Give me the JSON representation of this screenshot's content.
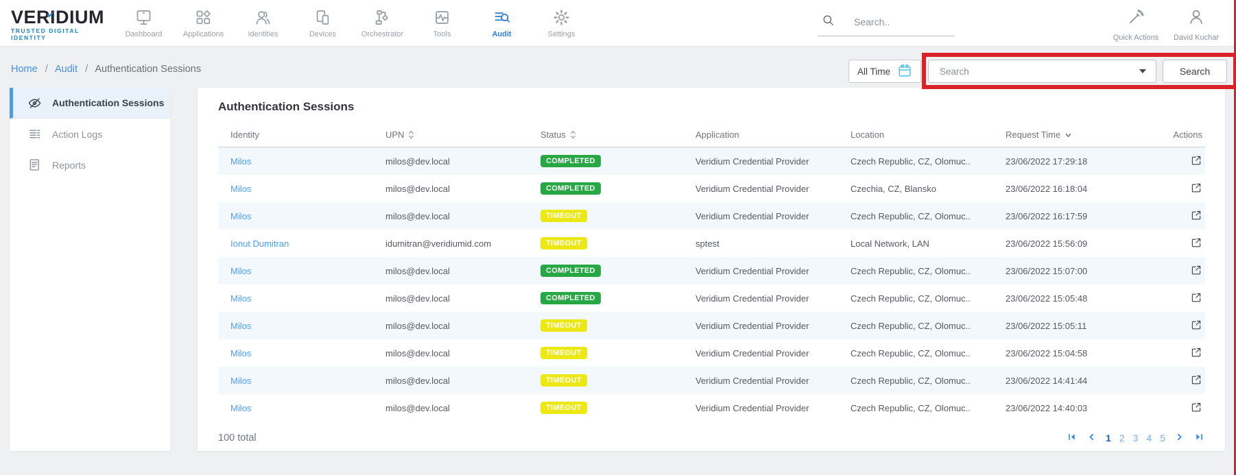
{
  "brand": {
    "name_prefix": "VER",
    "name_i": "I",
    "name_suffix": "DIUM",
    "tagline": "TRUSTED DIGITAL IDENTITY"
  },
  "navbar": {
    "items": [
      {
        "label": "Dashboard",
        "icon": "dashboard-icon",
        "active": false
      },
      {
        "label": "Applications",
        "icon": "applications-icon",
        "active": false
      },
      {
        "label": "Identities",
        "icon": "identities-icon",
        "active": false
      },
      {
        "label": "Devices",
        "icon": "devices-icon",
        "active": false
      },
      {
        "label": "Orchestrator",
        "icon": "orchestrator-icon",
        "active": false
      },
      {
        "label": "Tools",
        "icon": "tools-icon",
        "active": false
      },
      {
        "label": "Audit",
        "icon": "audit-icon",
        "active": true
      },
      {
        "label": "Settings",
        "icon": "settings-icon",
        "active": false
      }
    ],
    "global_search_placeholder": "Search..",
    "quick_actions_label": "Quick Actions",
    "user_name": "David Kuchar"
  },
  "breadcrumb": {
    "links": [
      "Home",
      "Audit"
    ],
    "current": "Authentication Sessions",
    "separator": "/"
  },
  "filter_bar": {
    "time_filter_label": "All Time",
    "search_placeholder": "Search",
    "search_button_label": "Search"
  },
  "sidebar": {
    "items": [
      {
        "label": "Authentication Sessions",
        "icon": "eye-slash-icon",
        "active": true
      },
      {
        "label": "Action Logs",
        "icon": "action-logs-icon",
        "active": false
      },
      {
        "label": "Reports",
        "icon": "reports-icon",
        "active": false
      }
    ]
  },
  "main": {
    "title": "Authentication Sessions",
    "table": {
      "columns": [
        {
          "label": "Identity",
          "sort": "none"
        },
        {
          "label": "UPN",
          "sort": "both"
        },
        {
          "label": "Status",
          "sort": "both"
        },
        {
          "label": "Application",
          "sort": "none"
        },
        {
          "label": "Location",
          "sort": "none"
        },
        {
          "label": "Request Time",
          "sort": "desc"
        },
        {
          "label": "Actions",
          "sort": "none"
        }
      ],
      "rows": [
        {
          "identity": "Milos",
          "upn": "milos@dev.local",
          "status": "COMPLETED",
          "application": "Veridium Credential Provider",
          "location": "Czech Republic, CZ, Olomuc..",
          "request_time": "23/06/2022 17:29:18"
        },
        {
          "identity": "Milos",
          "upn": "milos@dev.local",
          "status": "COMPLETED",
          "application": "Veridium Credential Provider",
          "location": "Czechia, CZ, Blansko",
          "request_time": "23/06/2022 16:18:04"
        },
        {
          "identity": "Milos",
          "upn": "milos@dev.local",
          "status": "TIMEOUT",
          "application": "Veridium Credential Provider",
          "location": "Czech Republic, CZ, Olomuc..",
          "request_time": "23/06/2022 16:17:59"
        },
        {
          "identity": "Ionut Dumitran",
          "upn": "idumitran@veridiumid.com",
          "status": "TIMEOUT",
          "application": "sptest",
          "location": "Local Network, LAN",
          "request_time": "23/06/2022 15:56:09"
        },
        {
          "identity": "Milos",
          "upn": "milos@dev.local",
          "status": "COMPLETED",
          "application": "Veridium Credential Provider",
          "location": "Czech Republic, CZ, Olomuc..",
          "request_time": "23/06/2022 15:07:00"
        },
        {
          "identity": "Milos",
          "upn": "milos@dev.local",
          "status": "COMPLETED",
          "application": "Veridium Credential Provider",
          "location": "Czech Republic, CZ, Olomuc..",
          "request_time": "23/06/2022 15:05:48"
        },
        {
          "identity": "Milos",
          "upn": "milos@dev.local",
          "status": "TIMEOUT",
          "application": "Veridium Credential Provider",
          "location": "Czech Republic, CZ, Olomuc..",
          "request_time": "23/06/2022 15:05:11"
        },
        {
          "identity": "Milos",
          "upn": "milos@dev.local",
          "status": "TIMEOUT",
          "application": "Veridium Credential Provider",
          "location": "Czech Republic, CZ, Olomuc..",
          "request_time": "23/06/2022 15:04:58"
        },
        {
          "identity": "Milos",
          "upn": "milos@dev.local",
          "status": "TIMEOUT",
          "application": "Veridium Credential Provider",
          "location": "Czech Republic, CZ, Olomuc..",
          "request_time": "23/06/2022 14:41:44"
        },
        {
          "identity": "Milos",
          "upn": "milos@dev.local",
          "status": "TIMEOUT",
          "application": "Veridium Credential Provider",
          "location": "Czech Republic, CZ, Olomuc..",
          "request_time": "23/06/2022 14:40:03"
        }
      ]
    },
    "total_label": "100 total",
    "pagination": {
      "pages": [
        "1",
        "2",
        "3",
        "4",
        "5"
      ],
      "current_page": "1"
    }
  },
  "colors": {
    "accent_blue": "#2f7cd3",
    "link_blue": "#4ba2f8",
    "status_completed_bg": "#28a745",
    "status_timeout_bg": "#ece813",
    "highlight_red": "#da2128",
    "sidebar_active_bg": "#e9f2fb",
    "row_alt_bg": "#f3f8fd",
    "tagline_blue": "#1b84c3"
  }
}
